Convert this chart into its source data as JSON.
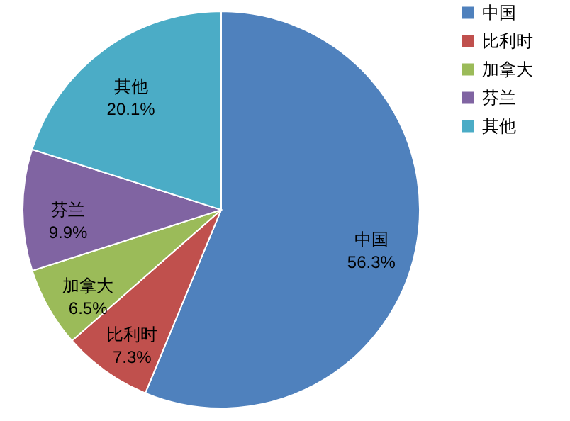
{
  "chart_data": {
    "type": "pie",
    "categories": [
      "中国",
      "比利时",
      "加拿大",
      "芬兰",
      "其他"
    ],
    "values": [
      56.3,
      7.3,
      6.5,
      9.9,
      20.1
    ],
    "colors": [
      "#4f81bd",
      "#c0504d",
      "#9bbb59",
      "#8064a2",
      "#4bacc6"
    ],
    "value_labels": [
      "56.3%",
      "7.3%",
      "6.5%",
      "9.9%",
      "20.1%"
    ],
    "legend": "right"
  }
}
